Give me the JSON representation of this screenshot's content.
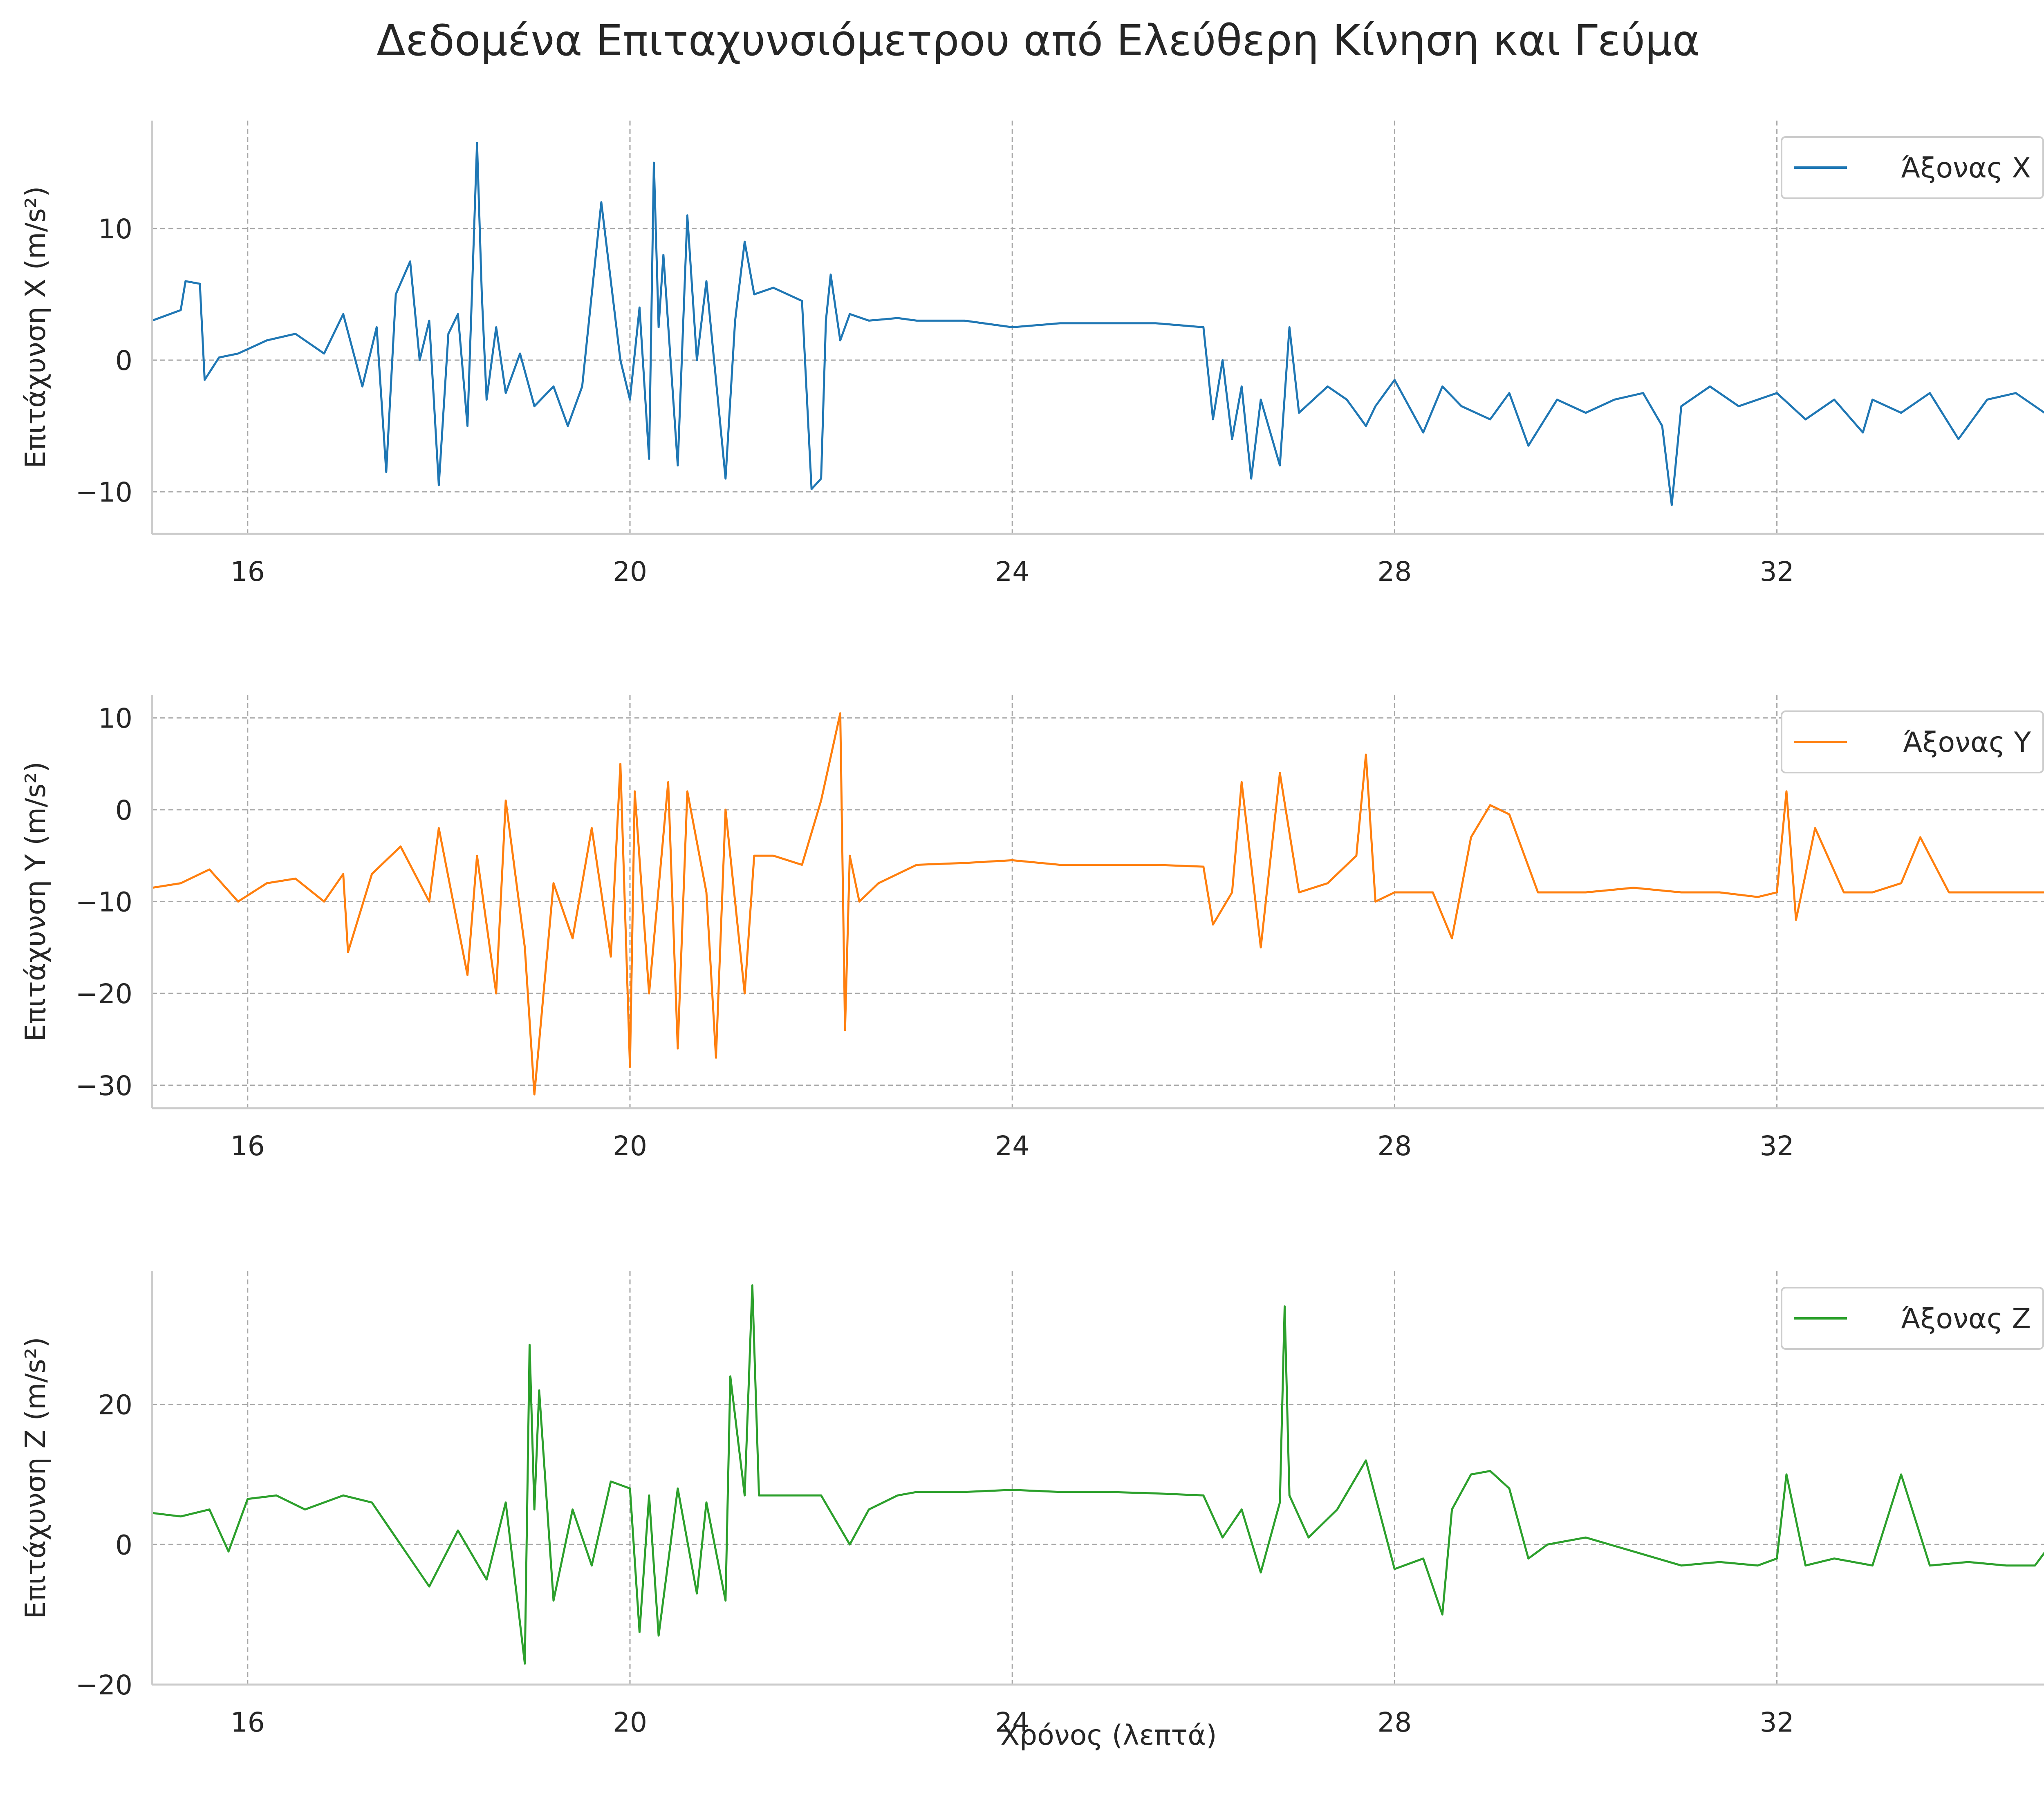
{
  "figure": {
    "title": "Δεδομένα Επιταχυνσιόμετρου από Ελεύθερη Κίνηση και Γεύμα",
    "xlabel": "Χρόνος (λεπτά)"
  },
  "chart_data": [
    {
      "type": "line",
      "ylabel": "Επιτάχυνση X (m/s²)",
      "xlim": [
        15.0,
        35.0
      ],
      "ylim": [
        -13.2,
        18.2
      ],
      "xticks": [
        16,
        20,
        24,
        28,
        32
      ],
      "xtick_labels": [
        "16",
        "20",
        "24",
        "28",
        "32"
      ],
      "yticks": [
        -10,
        0,
        10
      ],
      "ytick_labels": [
        "−10",
        "0",
        "10"
      ],
      "grid": true,
      "legend_position": "top-right",
      "series": [
        {
          "name": "Άξονας X",
          "color": "#1f77b4",
          "x": [
            15.0,
            15.3,
            15.35,
            15.5,
            15.55,
            15.7,
            15.9,
            16.2,
            16.5,
            16.8,
            17.0,
            17.2,
            17.35,
            17.45,
            17.55,
            17.7,
            17.8,
            17.9,
            18.0,
            18.1,
            18.2,
            18.3,
            18.4,
            18.45,
            18.5,
            18.6,
            18.7,
            18.85,
            19.0,
            19.2,
            19.35,
            19.5,
            19.7,
            19.9,
            20.0,
            20.1,
            20.2,
            20.25,
            20.3,
            20.35,
            20.5,
            20.6,
            20.7,
            20.8,
            21.0,
            21.1,
            21.2,
            21.3,
            21.5,
            21.8,
            21.9,
            22.0,
            22.05,
            22.1,
            22.2,
            22.3,
            22.5,
            22.8,
            23.0,
            23.5,
            24.0,
            24.5,
            25.0,
            25.5,
            26.0,
            26.1,
            26.2,
            26.3,
            26.4,
            26.5,
            26.6,
            26.8,
            26.9,
            27.0,
            27.3,
            27.5,
            27.7,
            27.8,
            28.0,
            28.3,
            28.5,
            28.7,
            29.0,
            29.2,
            29.4,
            29.7,
            30.0,
            30.3,
            30.6,
            30.8,
            30.9,
            31.0,
            31.3,
            31.6,
            32.0,
            32.3,
            32.6,
            32.9,
            33.0,
            33.3,
            33.6,
            33.9,
            34.2,
            34.5,
            34.8,
            35.0
          ],
          "y": [
            3.0,
            3.8,
            6.0,
            5.8,
            -1.5,
            0.2,
            0.5,
            1.5,
            2.0,
            0.5,
            3.5,
            -2.0,
            2.5,
            -8.5,
            5.0,
            7.5,
            0.0,
            3.0,
            -9.5,
            2.0,
            3.5,
            -5.0,
            16.5,
            5.0,
            -3.0,
            2.5,
            -2.5,
            0.5,
            -3.5,
            -2.0,
            -5.0,
            -2.0,
            12.0,
            0.0,
            -3.0,
            4.0,
            -7.5,
            15.0,
            2.5,
            8.0,
            -8.0,
            11.0,
            0.0,
            6.0,
            -9.0,
            3.0,
            9.0,
            5.0,
            5.5,
            4.5,
            -9.8,
            -9.0,
            3.0,
            6.5,
            1.5,
            3.5,
            3.0,
            3.2,
            3.0,
            3.0,
            2.5,
            2.8,
            2.8,
            2.8,
            2.5,
            -4.5,
            0.0,
            -6.0,
            -2.0,
            -9.0,
            -3.0,
            -8.0,
            2.5,
            -4.0,
            -2.0,
            -3.0,
            -5.0,
            -3.5,
            -1.5,
            -5.5,
            -2.0,
            -3.5,
            -4.5,
            -2.5,
            -6.5,
            -3.0,
            -4.0,
            -3.0,
            -2.5,
            -5.0,
            -11.0,
            -3.5,
            -2.0,
            -3.5,
            -2.5,
            -4.5,
            -3.0,
            -5.5,
            -3.0,
            -4.0,
            -2.5,
            -6.0,
            -3.0,
            -2.5,
            -4.0,
            -3.5
          ]
        }
      ]
    },
    {
      "type": "line",
      "ylabel": "Επιτάχυνση Y (m/s²)",
      "xlim": [
        15.0,
        35.0
      ],
      "ylim": [
        -32.5,
        12.5
      ],
      "xticks": [
        16,
        20,
        24,
        28,
        32
      ],
      "xtick_labels": [
        "16",
        "20",
        "24",
        "28",
        "32"
      ],
      "yticks": [
        -30,
        -20,
        -10,
        0,
        10
      ],
      "ytick_labels": [
        "−30",
        "−20",
        "−10",
        "0",
        "10"
      ],
      "grid": true,
      "legend_position": "top-right",
      "series": [
        {
          "name": "Άξονας Y",
          "color": "#ff7f0e",
          "x": [
            15.0,
            15.3,
            15.6,
            15.9,
            16.2,
            16.5,
            16.8,
            17.0,
            17.05,
            17.3,
            17.6,
            17.9,
            18.0,
            18.3,
            18.4,
            18.6,
            18.7,
            18.9,
            19.0,
            19.2,
            19.4,
            19.6,
            19.8,
            19.9,
            20.0,
            20.05,
            20.2,
            20.4,
            20.5,
            20.6,
            20.8,
            20.9,
            21.0,
            21.2,
            21.3,
            21.5,
            21.8,
            22.0,
            22.2,
            22.25,
            22.3,
            22.4,
            22.6,
            23.0,
            23.5,
            24.0,
            24.5,
            25.0,
            25.5,
            26.0,
            26.1,
            26.3,
            26.4,
            26.6,
            26.8,
            27.0,
            27.3,
            27.6,
            27.7,
            27.8,
            28.0,
            28.4,
            28.6,
            28.8,
            29.0,
            29.2,
            29.5,
            30.0,
            30.5,
            31.0,
            31.4,
            31.8,
            32.0,
            32.1,
            32.2,
            32.4,
            32.7,
            33.0,
            33.3,
            33.5,
            33.8,
            34.1,
            34.5,
            35.0
          ],
          "y": [
            -8.5,
            -8.0,
            -6.5,
            -10.0,
            -8.0,
            -7.5,
            -10.0,
            -7.0,
            -15.5,
            -7.0,
            -4.0,
            -10.0,
            -2.0,
            -18.0,
            -5.0,
            -20.0,
            1.0,
            -15.0,
            -31.0,
            -8.0,
            -14.0,
            -2.0,
            -16.0,
            5.0,
            -28.0,
            2.0,
            -20.0,
            3.0,
            -26.0,
            2.0,
            -9.0,
            -27.0,
            0.0,
            -20.0,
            -5.0,
            -5.0,
            -6.0,
            1.0,
            10.5,
            -24.0,
            -5.0,
            -10.0,
            -8.0,
            -6.0,
            -5.8,
            -5.5,
            -6.0,
            -6.0,
            -6.0,
            -6.2,
            -12.5,
            -9.0,
            3.0,
            -15.0,
            4.0,
            -9.0,
            -8.0,
            -5.0,
            6.0,
            -10.0,
            -9.0,
            -9.0,
            -14.0,
            -3.0,
            0.5,
            -0.5,
            -9.0,
            -9.0,
            -8.5,
            -9.0,
            -9.0,
            -9.5,
            -9.0,
            2.0,
            -12.0,
            -2.0,
            -9.0,
            -9.0,
            -8.0,
            -3.0,
            -9.0,
            -9.0,
            -9.0,
            -9.0
          ]
        }
      ]
    },
    {
      "type": "line",
      "ylabel": "Επιτάχυνση Z (m/s²)",
      "xlim": [
        15.0,
        35.0
      ],
      "ylim": [
        -20.0,
        39.0
      ],
      "xticks": [
        16,
        20,
        24,
        28,
        32
      ],
      "xtick_labels": [
        "16",
        "20",
        "24",
        "28",
        "32"
      ],
      "yticks": [
        -20,
        0,
        20
      ],
      "ytick_labels": [
        "−20",
        "0",
        "20"
      ],
      "grid": true,
      "legend_position": "top-right",
      "series": [
        {
          "name": "Άξονας Z",
          "color": "#2ca02c",
          "x": [
            15.0,
            15.3,
            15.6,
            15.8,
            16.0,
            16.3,
            16.6,
            17.0,
            17.3,
            17.6,
            17.9,
            18.2,
            18.5,
            18.7,
            18.9,
            18.95,
            19.0,
            19.05,
            19.2,
            19.4,
            19.6,
            19.8,
            20.0,
            20.1,
            20.2,
            20.3,
            20.5,
            20.7,
            20.8,
            21.0,
            21.05,
            21.2,
            21.28,
            21.35,
            21.6,
            22.0,
            22.3,
            22.5,
            22.8,
            23.0,
            23.5,
            24.0,
            24.5,
            25.0,
            25.5,
            26.0,
            26.2,
            26.4,
            26.6,
            26.8,
            26.85,
            26.9,
            27.1,
            27.4,
            27.7,
            28.0,
            28.3,
            28.5,
            28.6,
            28.8,
            29.0,
            29.2,
            29.4,
            29.6,
            30.0,
            30.5,
            31.0,
            31.4,
            31.8,
            32.0,
            32.1,
            32.3,
            32.6,
            33.0,
            33.3,
            33.6,
            34.0,
            34.4,
            34.7,
            35.0
          ],
          "y": [
            4.5,
            4.0,
            5.0,
            -1.0,
            6.5,
            7.0,
            5.0,
            7.0,
            6.0,
            0.0,
            -6.0,
            2.0,
            -5.0,
            6.0,
            -17.0,
            28.5,
            5.0,
            22.0,
            -8.0,
            5.0,
            -3.0,
            9.0,
            8.0,
            -12.5,
            7.0,
            -13.0,
            8.0,
            -7.0,
            6.0,
            -8.0,
            24.0,
            7.0,
            37.0,
            7.0,
            7.0,
            7.0,
            0.0,
            5.0,
            7.0,
            7.5,
            7.5,
            7.8,
            7.5,
            7.5,
            7.3,
            7.0,
            1.0,
            5.0,
            -4.0,
            6.0,
            34.0,
            7.0,
            1.0,
            5.0,
            12.0,
            -3.5,
            -2.0,
            -10.0,
            5.0,
            10.0,
            10.5,
            8.0,
            -2.0,
            0.0,
            1.0,
            -1.0,
            -3.0,
            -2.5,
            -3.0,
            -2.0,
            10.0,
            -3.0,
            -2.0,
            -3.0,
            10.0,
            -3.0,
            -2.5,
            -3.0,
            -3.0,
            2.5
          ]
        }
      ]
    }
  ]
}
